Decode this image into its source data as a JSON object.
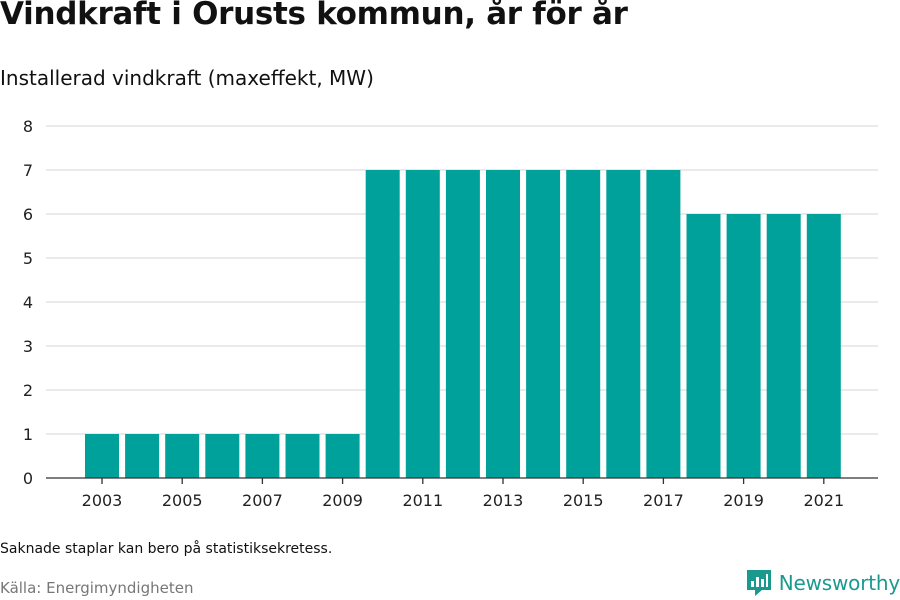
{
  "title": "Vindkraft i Orusts kommun, år för år",
  "subtitle": "Installerad vindkraft (maxeffekt, MW)",
  "note": "Saknade staplar kan bero på statistiksekretess.",
  "source": "Källa: Energimyndigheten",
  "brand": {
    "name": "Newsworthy",
    "icon": "newsworthy-logo-icon",
    "color": "#1a9a8f"
  },
  "colors": {
    "bar": "#00a19a",
    "grid": "#dddddd",
    "axis": "#333333"
  },
  "chart_data": {
    "type": "bar",
    "categories": [
      "2003",
      "2004",
      "2005",
      "2006",
      "2007",
      "2008",
      "2009",
      "2010",
      "2011",
      "2012",
      "2013",
      "2014",
      "2015",
      "2016",
      "2017",
      "2018",
      "2019",
      "2020",
      "2021"
    ],
    "values": [
      1,
      1,
      1,
      1,
      1,
      1,
      1,
      7,
      7,
      7,
      7,
      7,
      7,
      7,
      7,
      6,
      6,
      6,
      6
    ],
    "x_tick_labels": [
      "2003",
      "2005",
      "2007",
      "2009",
      "2011",
      "2013",
      "2015",
      "2017",
      "2019",
      "2021"
    ],
    "y_ticks": [
      0,
      1,
      2,
      3,
      4,
      5,
      6,
      7,
      8
    ],
    "ylim": [
      0,
      8
    ],
    "title": "Vindkraft i Orusts kommun, år för år",
    "subtitle": "Installerad vindkraft (maxeffekt, MW)",
    "xlabel": "",
    "ylabel": "",
    "grid": true,
    "legend": "none"
  }
}
